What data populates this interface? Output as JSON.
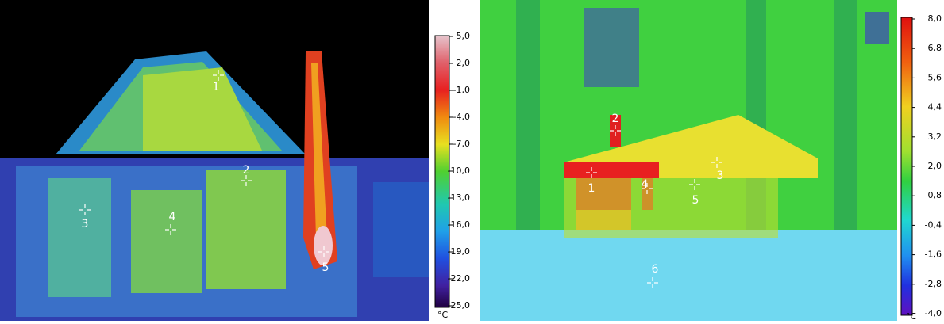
{
  "left_image": {
    "scale_labels": [
      "5,0",
      "2,0",
      "-1,0",
      "-4,0",
      "-7,0",
      "-10,0",
      "-13,0",
      "-16,0",
      "-19,0",
      "-22,0",
      "-25,0"
    ],
    "unit": "°C",
    "markers": [
      "1",
      "2",
      "3",
      "4",
      "5"
    ]
  },
  "right_image": {
    "scale_labels": [
      "8,0",
      "6,8",
      "5,6",
      "4,4",
      "3,2",
      "2,0",
      "0,8",
      "-0,4",
      "-1,6",
      "-2,8",
      "-4,0"
    ],
    "unit": "°C",
    "markers": [
      "1",
      "2",
      "3",
      "4",
      "5",
      "6"
    ]
  }
}
